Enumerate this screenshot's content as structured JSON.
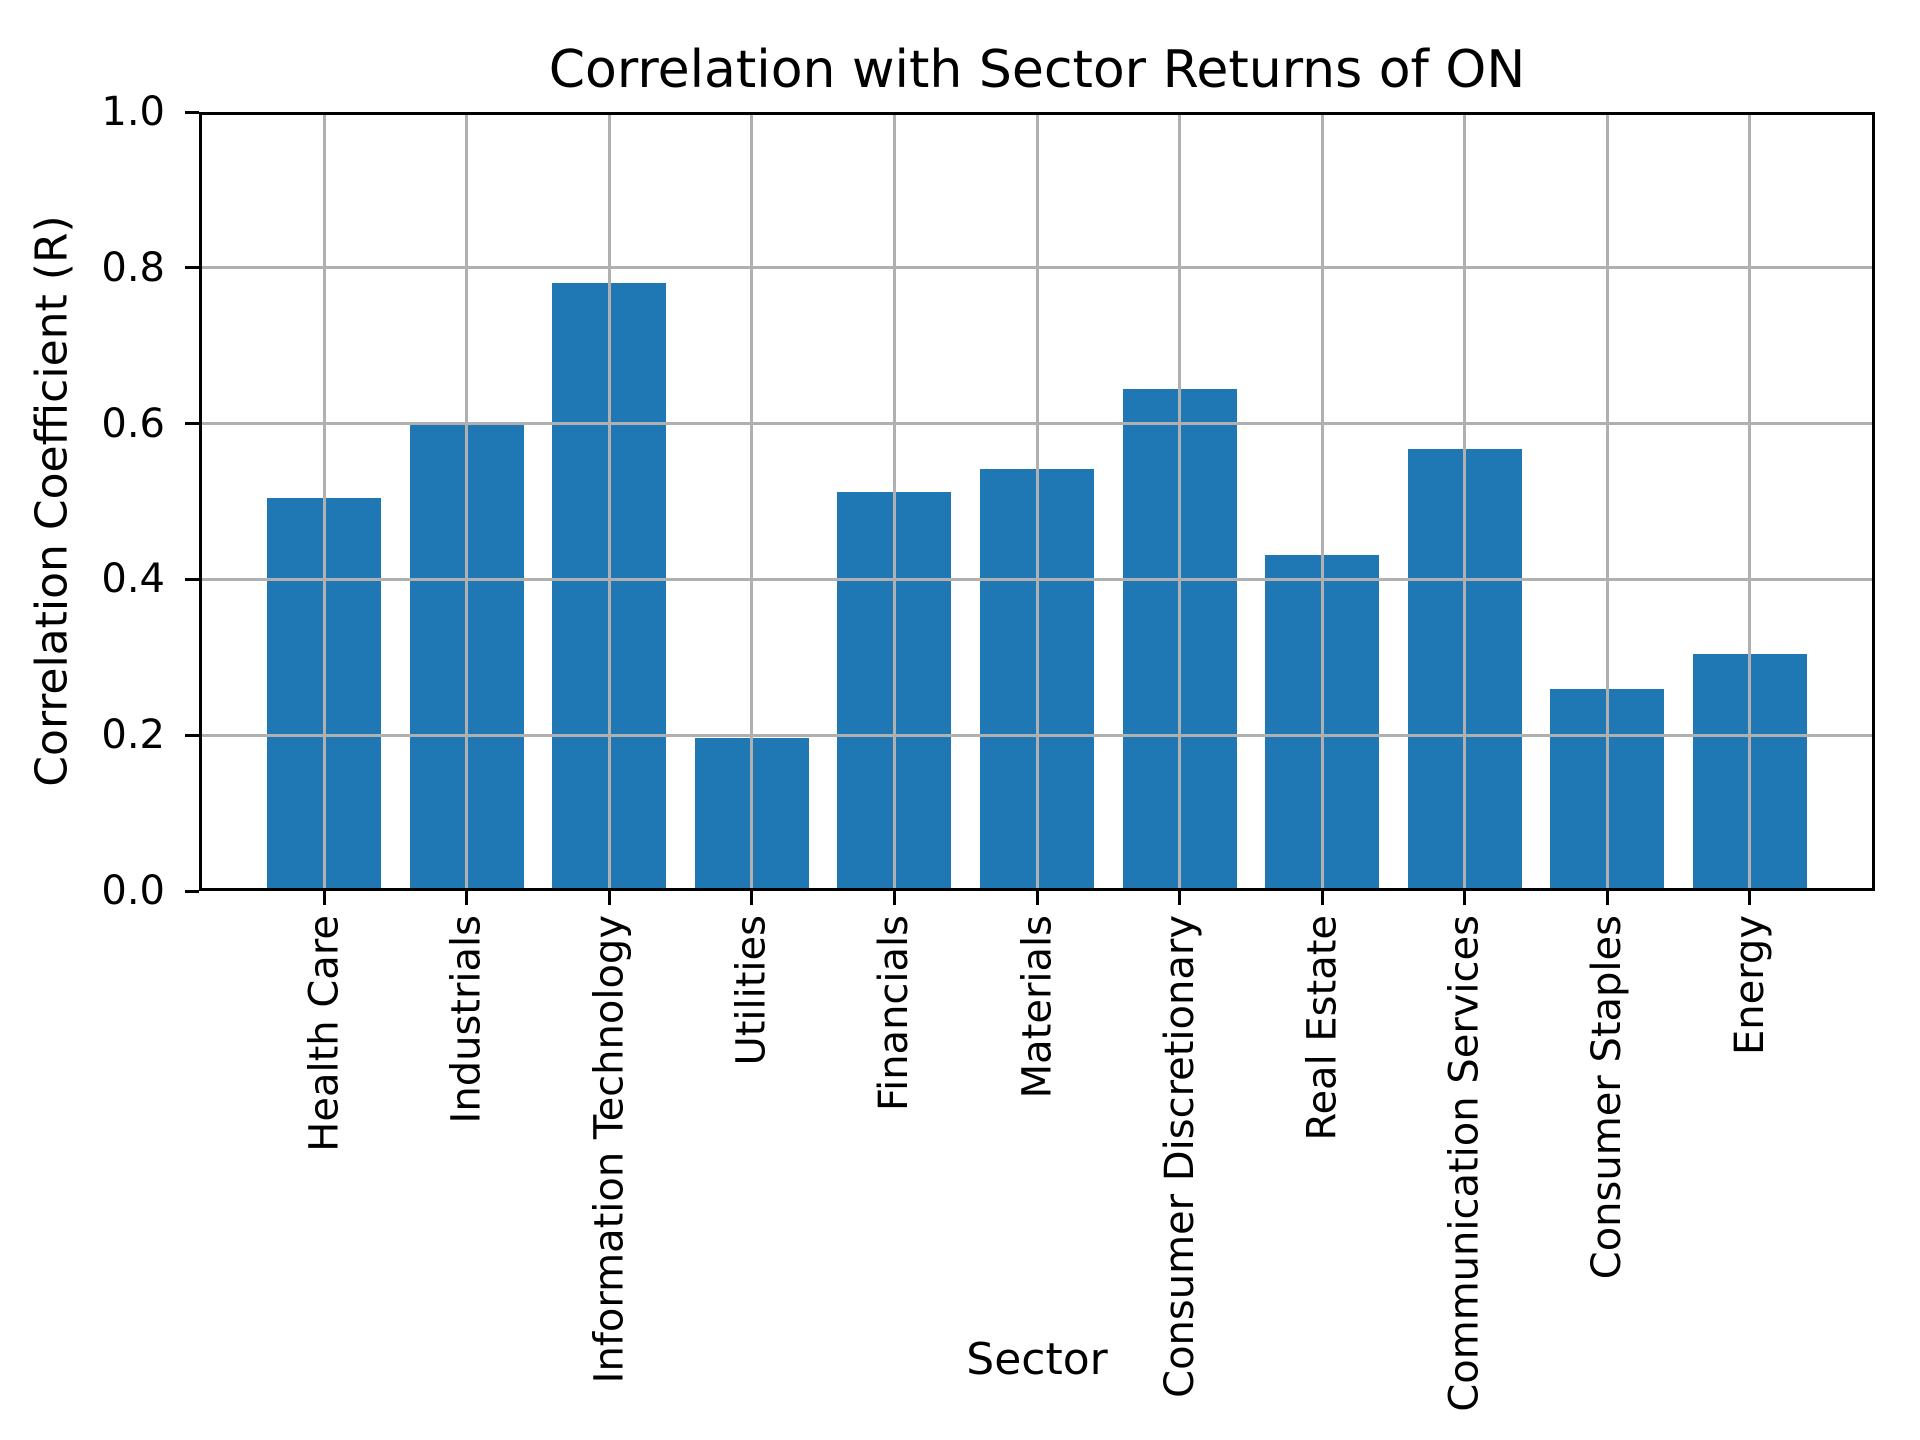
{
  "figure": {
    "background": "#ffffff",
    "text_color": "#000000"
  },
  "chart_data": {
    "type": "bar",
    "title": "Correlation with Sector Returns of ON",
    "xlabel": "Sector",
    "ylabel": "Correlation Coefficient (R)",
    "categories": [
      "Health Care",
      "Industrials",
      "Information Technology",
      "Utilities",
      "Financials",
      "Materials",
      "Consumer Discretionary",
      "Real Estate",
      "Communication Services",
      "Consumer Staples",
      "Energy"
    ],
    "values": [
      0.504,
      0.602,
      0.78,
      0.196,
      0.512,
      0.542,
      0.645,
      0.431,
      0.567,
      0.259,
      0.304
    ],
    "ylim": [
      0.0,
      1.0
    ],
    "yticks": [
      0.0,
      0.2,
      0.4,
      0.6,
      0.8,
      1.0
    ],
    "ytick_labels": [
      "0.0",
      "0.2",
      "0.4",
      "0.6",
      "0.8",
      "1.0"
    ],
    "xtick_rotation": 90,
    "grid": true,
    "grid_on_top_of_bars": true,
    "grid_color": "#b0b0b0",
    "bar_color": "#1f77b4",
    "spine_color": "#000000",
    "legend": null
  }
}
